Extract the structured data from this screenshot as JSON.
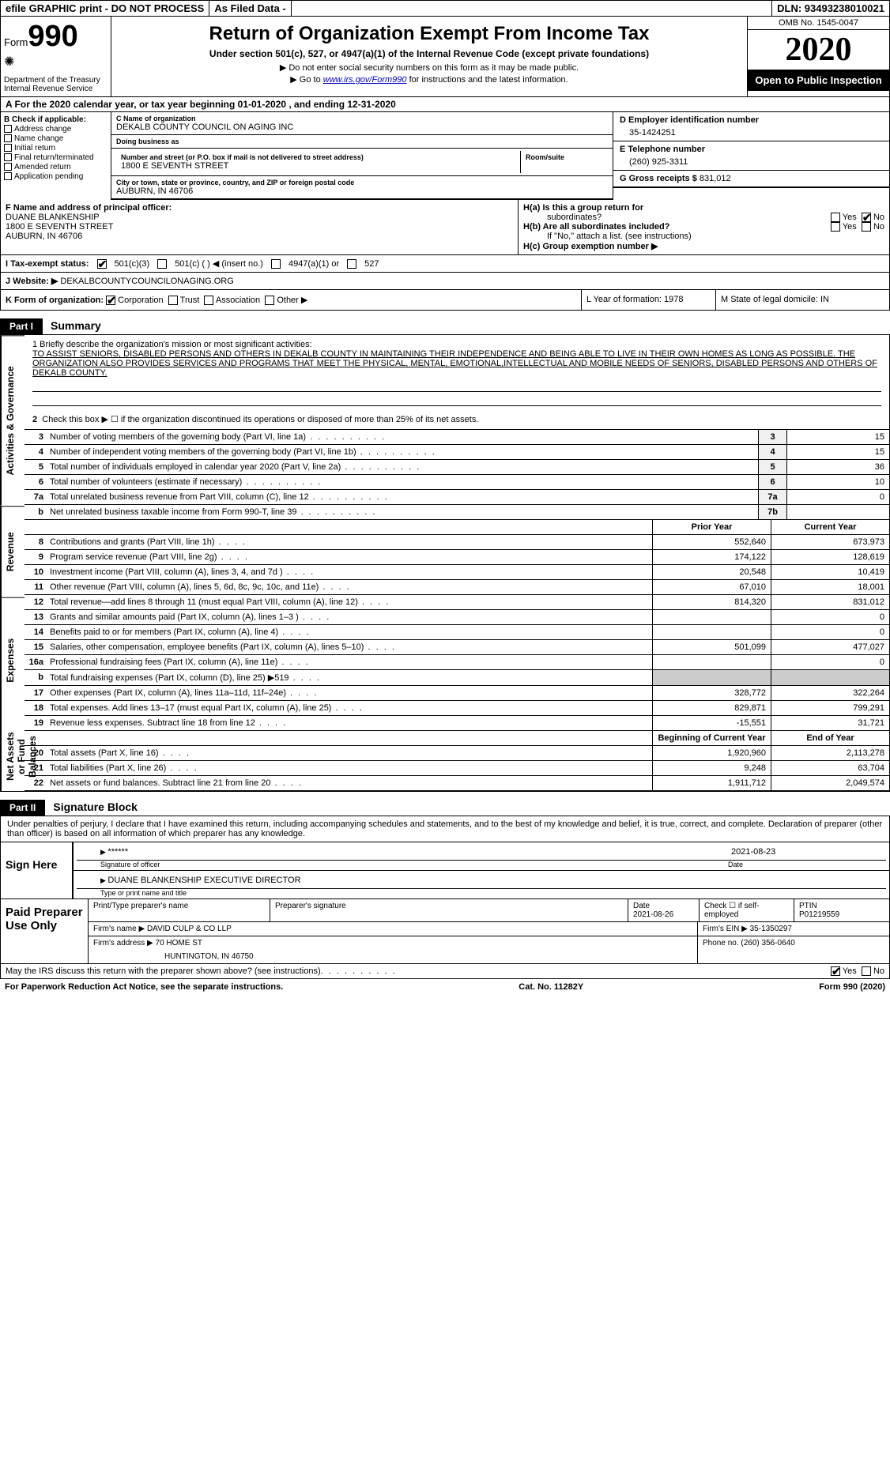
{
  "top": {
    "efile": "efile GRAPHIC print - DO NOT PROCESS",
    "asfiled": "As Filed Data -",
    "dln": "DLN: 93493238010021"
  },
  "header": {
    "form_label": "Form",
    "form_num": "990",
    "dept": "Department of the Treasury\nInternal Revenue Service",
    "title": "Return of Organization Exempt From Income Tax",
    "subtitle": "Under section 501(c), 527, or 4947(a)(1) of the Internal Revenue Code (except private foundations)",
    "instr1": "▶ Do not enter social security numbers on this form as it may be made public.",
    "instr2_pre": "▶ Go to ",
    "instr2_link": "www.irs.gov/Form990",
    "instr2_post": " for instructions and the latest information.",
    "omb": "OMB No. 1545-0047",
    "year": "2020",
    "open": "Open to Public Inspection"
  },
  "row_a": "A   For the 2020 calendar year, or tax year beginning 01-01-2020   , and ending 12-31-2020",
  "col_b": {
    "hdr": "B Check if applicable:",
    "items": [
      "Address change",
      "Name change",
      "Initial return",
      "Final return/terminated",
      "Amended return",
      "Application pending"
    ]
  },
  "col_c": {
    "name_lbl": "C Name of organization",
    "name": "DEKALB COUNTY COUNCIL ON AGING INC",
    "dba_lbl": "Doing business as",
    "dba": "",
    "street_lbl": "Number and street (or P.O. box if mail is not delivered to street address)",
    "street": "1800 E SEVENTH STREET",
    "room_lbl": "Room/suite",
    "city_lbl": "City or town, state or province, country, and ZIP or foreign postal code",
    "city": "AUBURN, IN  46706"
  },
  "col_d": {
    "ein_lbl": "D Employer identification number",
    "ein": "35-1424251",
    "phone_lbl": "E Telephone number",
    "phone": "(260) 925-3311",
    "gross_lbl": "G Gross receipts $",
    "gross": "831,012"
  },
  "row_f": {
    "f_lbl": "F  Name and address of principal officer:",
    "f_name": "DUANE BLANKENSHIP",
    "f_addr1": "1800 E SEVENTH STREET",
    "f_addr2": "AUBURN, IN  46706",
    "ha": "H(a)  Is this a group return for",
    "ha2": "subordinates?",
    "hb": "H(b)  Are all subordinates included?",
    "hb_note": "If \"No,\" attach a list. (see instructions)",
    "hc": "H(c)  Group exemption number ▶",
    "yes": "Yes",
    "no": "No"
  },
  "row_i": {
    "lbl": "I  Tax-exempt status:",
    "o1": "501(c)(3)",
    "o2": "501(c) (   ) ◀ (insert no.)",
    "o3": "4947(a)(1) or",
    "o4": "527"
  },
  "row_j": {
    "lbl": "J  Website: ▶ ",
    "val": "DEKALBCOUNTYCOUNCILONAGING.ORG"
  },
  "row_k": {
    "lbl": "K Form of organization:",
    "o1": "Corporation",
    "o2": "Trust",
    "o3": "Association",
    "o4": "Other ▶",
    "l": "L Year of formation: 1978",
    "m": "M State of legal domicile: IN"
  },
  "part1": {
    "hdr": "Part I",
    "title": "Summary",
    "side1": "Activities & Governance",
    "side2": "Revenue",
    "side3": "Expenses",
    "side4": "Net Assets or Fund Balances",
    "mission_lbl": "1  Briefly describe the organization's mission or most significant activities:",
    "mission": "TO ASSIST SENIORS, DISABLED PERSONS AND OTHERS IN DEKALB COUNTY IN MAINTAINING THEIR INDEPENDENCE AND BEING ABLE TO LIVE IN THEIR OWN HOMES AS LONG AS POSSIBLE. THE ORGANIZATION ALSO PROVIDES SERVICES AND PROGRAMS THAT MEET THE PHYSICAL, MENTAL, EMOTIONAL,INTELLECTUAL AND MOBILE NEEDS OF SENIORS, DISABLED PERSONS AND OTHERS OF DEKALB COUNTY.",
    "l2": "Check this box ▶ ☐ if the organization discontinued its operations or disposed of more than 25% of its net assets.",
    "lines_ag": [
      {
        "n": "3",
        "d": "Number of voting members of the governing body (Part VI, line 1a)",
        "c": "3",
        "v": "15"
      },
      {
        "n": "4",
        "d": "Number of independent voting members of the governing body (Part VI, line 1b)",
        "c": "4",
        "v": "15"
      },
      {
        "n": "5",
        "d": "Total number of individuals employed in calendar year 2020 (Part V, line 2a)",
        "c": "5",
        "v": "36"
      },
      {
        "n": "6",
        "d": "Total number of volunteers (estimate if necessary)",
        "c": "6",
        "v": "10"
      },
      {
        "n": "7a",
        "d": "Total unrelated business revenue from Part VIII, column (C), line 12",
        "c": "7a",
        "v": "0"
      },
      {
        "n": "b",
        "d": "Net unrelated business taxable income from Form 990-T, line 39",
        "c": "7b",
        "v": ""
      }
    ],
    "hdr_py": "Prior Year",
    "hdr_cy": "Current Year",
    "lines_rev": [
      {
        "n": "8",
        "d": "Contributions and grants (Part VIII, line 1h)",
        "py": "552,640",
        "cy": "673,973"
      },
      {
        "n": "9",
        "d": "Program service revenue (Part VIII, line 2g)",
        "py": "174,122",
        "cy": "128,619"
      },
      {
        "n": "10",
        "d": "Investment income (Part VIII, column (A), lines 3, 4, and 7d )",
        "py": "20,548",
        "cy": "10,419"
      },
      {
        "n": "11",
        "d": "Other revenue (Part VIII, column (A), lines 5, 6d, 8c, 9c, 10c, and 11e)",
        "py": "67,010",
        "cy": "18,001"
      },
      {
        "n": "12",
        "d": "Total revenue—add lines 8 through 11 (must equal Part VIII, column (A), line 12)",
        "py": "814,320",
        "cy": "831,012"
      }
    ],
    "lines_exp": [
      {
        "n": "13",
        "d": "Grants and similar amounts paid (Part IX, column (A), lines 1–3 )",
        "py": "",
        "cy": "0"
      },
      {
        "n": "14",
        "d": "Benefits paid to or for members (Part IX, column (A), line 4)",
        "py": "",
        "cy": "0"
      },
      {
        "n": "15",
        "d": "Salaries, other compensation, employee benefits (Part IX, column (A), lines 5–10)",
        "py": "501,099",
        "cy": "477,027"
      },
      {
        "n": "16a",
        "d": "Professional fundraising fees (Part IX, column (A), line 11e)",
        "py": "",
        "cy": "0"
      },
      {
        "n": "b",
        "d": "Total fundraising expenses (Part IX, column (D), line 25) ▶519",
        "py": "shade",
        "cy": "shade"
      },
      {
        "n": "17",
        "d": "Other expenses (Part IX, column (A), lines 11a–11d, 11f–24e)",
        "py": "328,772",
        "cy": "322,264"
      },
      {
        "n": "18",
        "d": "Total expenses. Add lines 13–17 (must equal Part IX, column (A), line 25)",
        "py": "829,871",
        "cy": "799,291"
      },
      {
        "n": "19",
        "d": "Revenue less expenses. Subtract line 18 from line 12",
        "py": "-15,551",
        "cy": "31,721"
      }
    ],
    "hdr_boy": "Beginning of Current Year",
    "hdr_eoy": "End of Year",
    "lines_na": [
      {
        "n": "20",
        "d": "Total assets (Part X, line 16)",
        "py": "1,920,960",
        "cy": "2,113,278"
      },
      {
        "n": "21",
        "d": "Total liabilities (Part X, line 26)",
        "py": "9,248",
        "cy": "63,704"
      },
      {
        "n": "22",
        "d": "Net assets or fund balances. Subtract line 21 from line 20",
        "py": "1,911,712",
        "cy": "2,049,574"
      }
    ]
  },
  "part2": {
    "hdr": "Part II",
    "title": "Signature Block",
    "decl": "Under penalties of perjury, I declare that I have examined this return, including accompanying schedules and statements, and to the best of my knowledge and belief, it is true, correct, and complete. Declaration of preparer (other than officer) is based on all information of which preparer has any knowledge.",
    "sign_here": "Sign Here",
    "stars": "******",
    "sig_off": "Signature of officer",
    "date1": "2021-08-23",
    "date_lbl": "Date",
    "name_title": "DUANE BLANKENSHIP  EXECUTIVE DIRECTOR",
    "type_lbl": "Type or print name and title",
    "paid": "Paid Preparer Use Only",
    "p_name_lbl": "Print/Type preparer's name",
    "p_sig_lbl": "Preparer's signature",
    "p_date_lbl": "Date",
    "p_date": "2021-08-26",
    "p_check": "Check ☐ if self-employed",
    "ptin_lbl": "PTIN",
    "ptin": "P01219559",
    "firm_lbl": "Firm's name    ▶",
    "firm": "DAVID CULP & CO LLP",
    "fein_lbl": "Firm's EIN ▶",
    "fein": "35-1350297",
    "faddr_lbl": "Firm's address ▶",
    "faddr1": "70 HOME ST",
    "faddr2": "HUNTINGTON, IN  46750",
    "fphone_lbl": "Phone no.",
    "fphone": "(260) 356-0640",
    "discuss": "May the IRS discuss this return with the preparer shown above? (see instructions)",
    "yes": "Yes",
    "no": "No"
  },
  "footer": {
    "pra": "For Paperwork Reduction Act Notice, see the separate instructions.",
    "cat": "Cat. No. 11282Y",
    "form": "Form 990 (2020)"
  }
}
